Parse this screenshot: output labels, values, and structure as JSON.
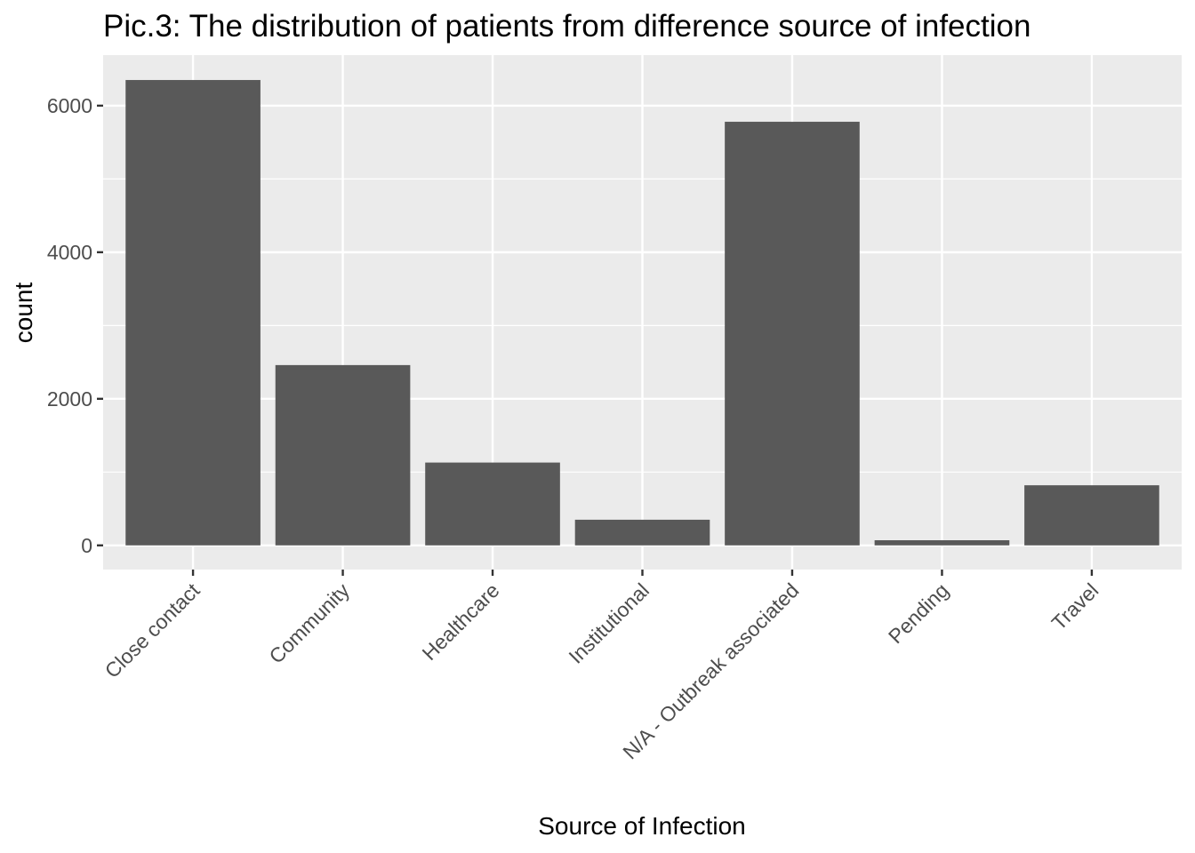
{
  "chart_data": {
    "type": "bar",
    "title": "Pic.3: The distribution of patients from difference source of infection",
    "xlabel": "Source of Infection",
    "ylabel": "count",
    "categories": [
      "Close contact",
      "Community",
      "Healthcare",
      "Institutional",
      "N/A - Outbreak associated",
      "Pending",
      "Travel"
    ],
    "values": [
      6350,
      2460,
      1130,
      350,
      5780,
      70,
      820
    ],
    "ylim": [
      -330,
      6690
    ],
    "yticks": [
      0,
      2000,
      4000,
      6000
    ],
    "ytick_labels": [
      "0",
      "2000",
      "4000",
      "6000"
    ],
    "grid": true,
    "legend": "none",
    "colors": {
      "bar": "#595959",
      "panel": "#ebebeb",
      "grid": "#ffffff",
      "tick": "#333333",
      "tick_label": "#4d4d4d"
    }
  }
}
